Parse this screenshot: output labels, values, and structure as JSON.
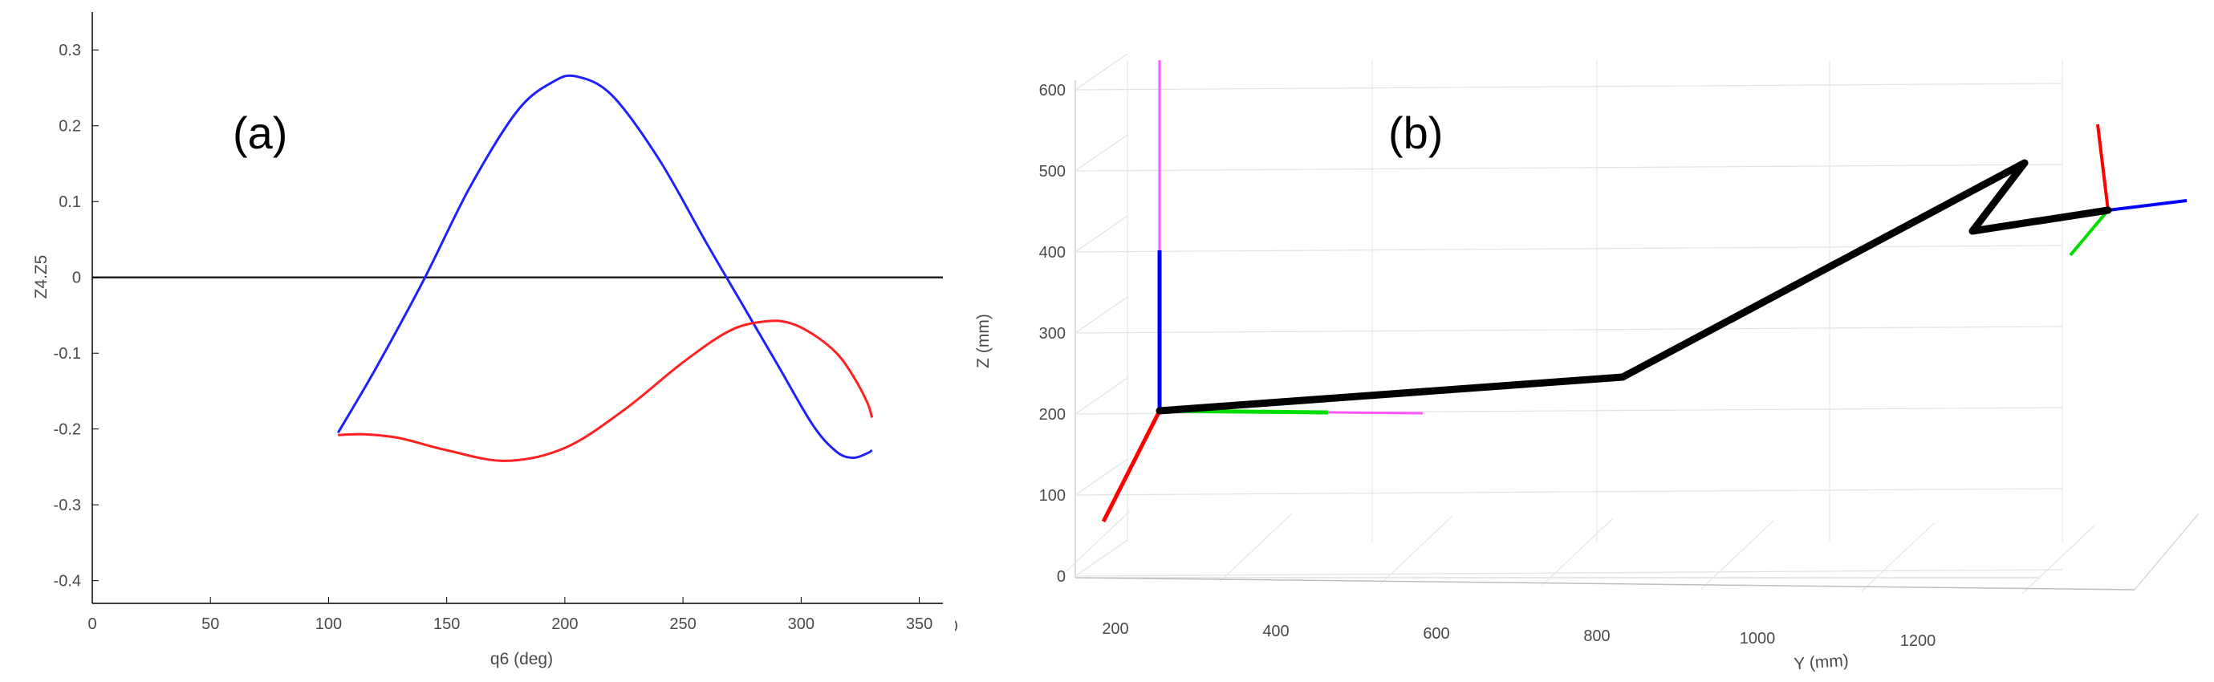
{
  "chart_data": [
    {
      "type": "line",
      "panel_label": "(a)",
      "xlabel": "q6 (deg)",
      "ylabel": "Z4.Z5",
      "xlim": [
        0,
        360
      ],
      "ylim": [
        -0.43,
        0.35
      ],
      "x_ticks": [
        0,
        50,
        100,
        150,
        200,
        250,
        300,
        350
      ],
      "y_ticks": [
        -0.4,
        -0.3,
        -0.2,
        -0.1,
        0,
        0.1,
        0.2,
        0.3
      ],
      "x_tick_labels": [
        "0",
        "50",
        "100",
        "150",
        "200",
        "250",
        "300",
        "350"
      ],
      "y_tick_labels": [
        "-0.4",
        "-0.3",
        "-0.2",
        "-0.1",
        "0",
        "0.1",
        "0.2",
        "0.3"
      ],
      "grid": false,
      "reference_line_y": 0,
      "series": [
        {
          "color": "#1f1fff",
          "x": [
            104,
            120,
            140,
            160,
            180,
            195,
            205,
            220,
            240,
            260,
            275,
            290,
            305,
            315,
            322,
            328,
            330
          ],
          "y": [
            -0.205,
            -0.12,
            -0.005,
            0.12,
            0.22,
            0.258,
            0.265,
            0.24,
            0.155,
            0.045,
            -0.035,
            -0.115,
            -0.195,
            -0.23,
            -0.238,
            -0.232,
            -0.228
          ]
        },
        {
          "color": "#ff2020",
          "x": [
            104,
            115,
            130,
            150,
            175,
            200,
            225,
            250,
            270,
            285,
            295,
            305,
            315,
            322,
            328,
            330
          ],
          "y": [
            -0.208,
            -0.207,
            -0.212,
            -0.228,
            -0.242,
            -0.225,
            -0.175,
            -0.112,
            -0.07,
            -0.058,
            -0.06,
            -0.075,
            -0.1,
            -0.13,
            -0.165,
            -0.185
          ]
        }
      ]
    },
    {
      "type": "line",
      "panel_label": "(b)",
      "projection": "3d",
      "xlabel": "",
      "ylabel": "Y (mm)",
      "zlabel": "Z (mm)",
      "grid": true,
      "y_ticks": [
        "0",
        "200",
        "400",
        "600",
        "800",
        "1000",
        "1200"
      ],
      "z_ticks": [
        "0",
        "100",
        "200",
        "300",
        "400",
        "500",
        "600"
      ],
      "series": [
        {
          "color": "#000000",
          "description_points_yz": [
            [
              100,
              210
            ],
            [
              650,
              250
            ],
            [
              1100,
              515
            ],
            [
              1050,
              435
            ],
            [
              1200,
              455
            ]
          ]
        }
      ],
      "frame_colors": {
        "x_axis": "#ff0000",
        "y_axis": "#00dd00",
        "z_axis": "#0000ff",
        "extension": "#ff55ff"
      }
    }
  ]
}
